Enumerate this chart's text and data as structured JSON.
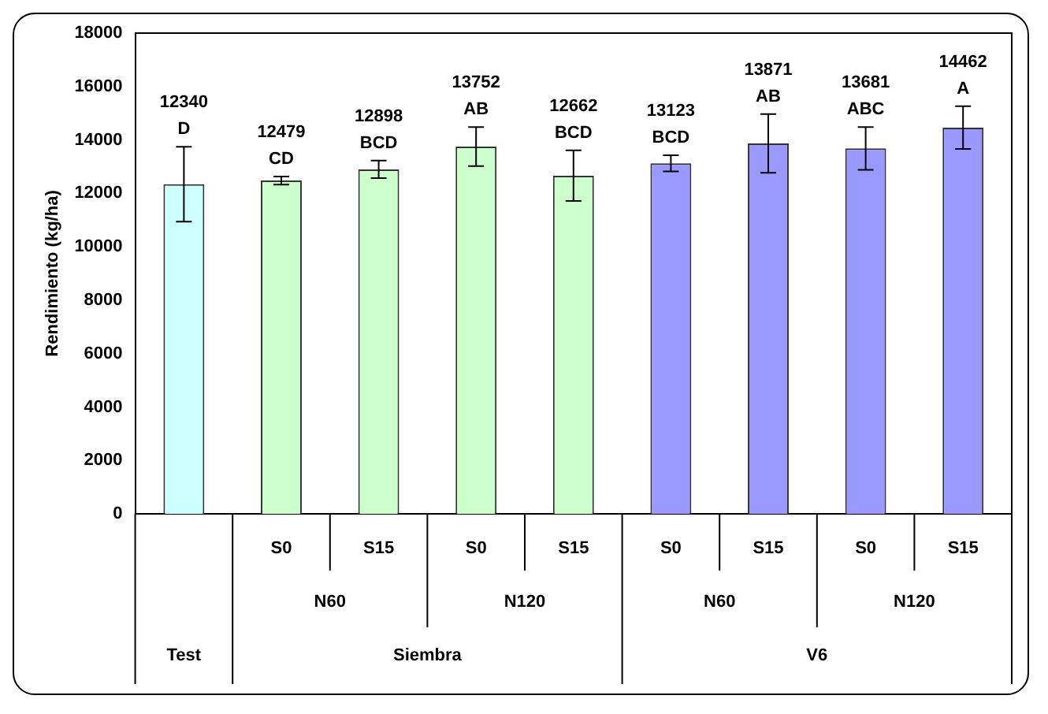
{
  "chart_data": {
    "type": "bar",
    "ylabel": "Rendimiento (kg/ha)",
    "categories": [
      null,
      "S0",
      "S15",
      "S0",
      "S15",
      "S0",
      "S15",
      "S0",
      "S15"
    ],
    "values": [
      12340,
      12479,
      12898,
      13752,
      12662,
      13123,
      13871,
      13681,
      14462
    ],
    "errors": [
      1400,
      150,
      330,
      730,
      950,
      300,
      1100,
      800,
      800
    ],
    "colors": [
      "#ccffff",
      "#ccffcc",
      "#ccffcc",
      "#ccffcc",
      "#ccffcc",
      "#9999ff",
      "#9999ff",
      "#9999ff",
      "#9999ff"
    ],
    "value_labels": [
      "12340\nD",
      "12479\nCD",
      "12898\nBCD",
      "13752\nAB",
      "12662\nBCD",
      "13123\nBCD",
      "13871\nAB",
      "13681\nABC",
      "14462\nA"
    ],
    "annotations": [
      "N60",
      "N120",
      "N60",
      "N120",
      "Test",
      "Siembra",
      "V6"
    ],
    "ylim": [
      0,
      18000
    ],
    "yticks": [
      0,
      2000,
      4000,
      6000,
      8000,
      10000,
      12000,
      14000,
      16000,
      18000
    ],
    "grid": false,
    "legend": false
  }
}
